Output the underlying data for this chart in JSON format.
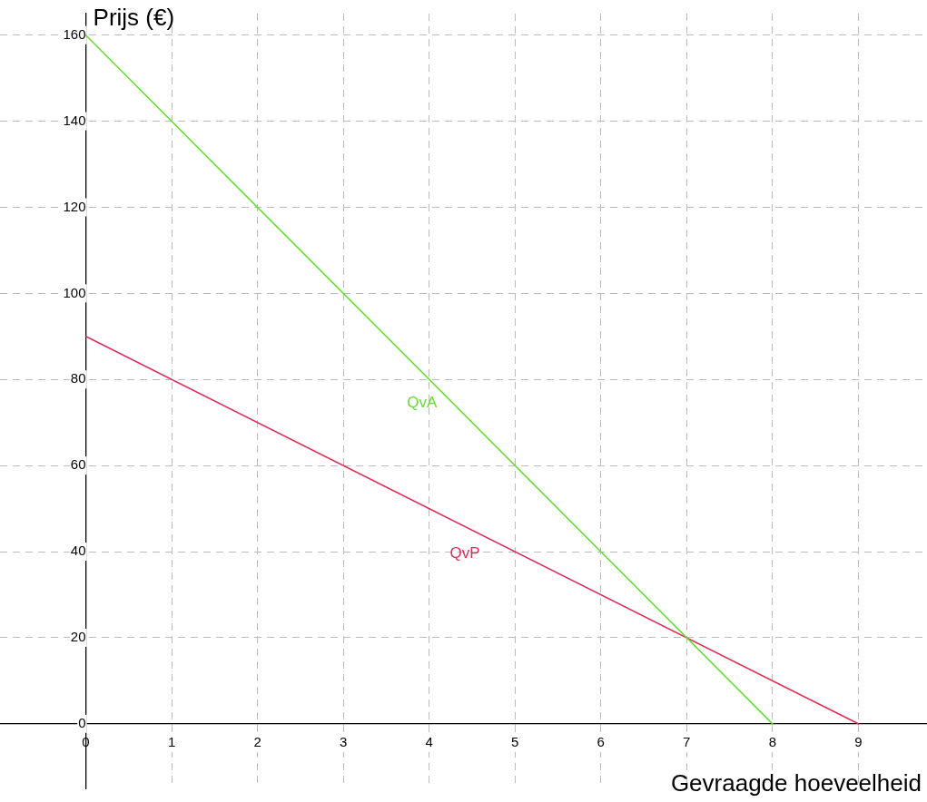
{
  "chart_data": {
    "type": "line",
    "xlabel": "Gevraagde hoeveelheid",
    "ylabel": "Prijs (€)",
    "xlim": [
      -1,
      9.8
    ],
    "ylim": [
      -15,
      165
    ],
    "xticks": [
      0,
      1,
      2,
      3,
      4,
      5,
      6,
      7,
      8,
      9
    ],
    "yticks": [
      0,
      20,
      40,
      60,
      80,
      100,
      120,
      140,
      160
    ],
    "grid": true,
    "marker": "none",
    "line_style": "solid",
    "series": [
      {
        "name": "QvA",
        "color": "#66dd33",
        "x": [
          0,
          8
        ],
        "values": [
          160,
          0
        ]
      },
      {
        "name": "QvP",
        "color": "#d83058",
        "x": [
          0,
          9
        ],
        "values": [
          90,
          0
        ]
      }
    ]
  }
}
